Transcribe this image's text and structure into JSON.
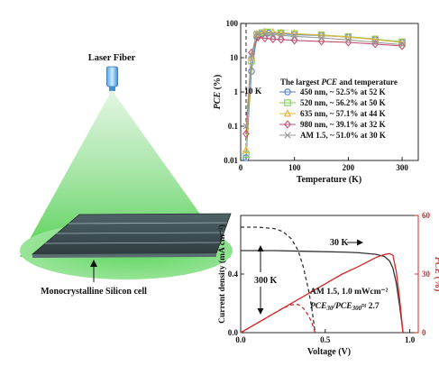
{
  "illustration": {
    "laser_label": "Laser Fiber",
    "cell_label": "Monocrystalline Silicon cell"
  },
  "chart_data": [
    {
      "type": "line",
      "xlabel": "Temperature (K)",
      "ylabel": "PCE (%)",
      "xlim": [
        0,
        330
      ],
      "ylim": [
        0.01,
        100
      ],
      "yscale": "log",
      "xticks": [
        "0",
        "100",
        "200",
        "300"
      ],
      "yticks": [
        "0.01",
        "0.1",
        "1",
        "10",
        "100"
      ],
      "grid": false,
      "legend_title": "The largest PCE and temperature",
      "legend_placement": "center-right",
      "annotation_10k": "10 K",
      "vline_x": 10,
      "series": [
        {
          "name": "450 nm, ~ 52.5% at 52 K",
          "color": "#4f7fd6",
          "marker": "circle",
          "x": [
            10,
            20,
            30,
            40,
            52,
            75,
            100,
            150,
            200,
            250,
            300
          ],
          "y": [
            0.012,
            4,
            40,
            50,
            52.5,
            50,
            47,
            44,
            40,
            34,
            28
          ]
        },
        {
          "name": "520 nm, ~ 56.2% at 50 K",
          "color": "#7fcf54",
          "marker": "square",
          "x": [
            10,
            20,
            30,
            40,
            50,
            75,
            100,
            150,
            200,
            250,
            300
          ],
          "y": [
            0.015,
            8,
            46,
            54,
            56.2,
            53,
            50,
            46,
            41,
            35,
            29
          ]
        },
        {
          "name": "635 nm, ~ 57.1% at 44 K",
          "color": "#e8b33a",
          "marker": "triangle",
          "x": [
            10,
            20,
            30,
            44,
            60,
            75,
            100,
            150,
            200,
            250,
            300
          ],
          "y": [
            0.02,
            10,
            50,
            57.1,
            55,
            53,
            50,
            45,
            40,
            34,
            28
          ]
        },
        {
          "name": "980 nm, ~ 39.1% at 32 K",
          "color": "#c05070",
          "marker": "diamond",
          "x": [
            10,
            20,
            32,
            45,
            60,
            75,
            100,
            150,
            200,
            250,
            300
          ],
          "y": [
            0.06,
            14,
            39.1,
            37,
            35,
            34,
            32,
            30,
            28,
            25,
            22
          ]
        },
        {
          "name": "AM 1.5, ~ 51.0% at 30 K",
          "color": "#9a9a9a",
          "marker": "cross",
          "x": [
            10,
            20,
            30,
            45,
            60,
            75,
            100,
            150,
            200,
            250,
            300
          ],
          "y": [
            0.1,
            12,
            51,
            49,
            47,
            45,
            42,
            38,
            33,
            28,
            24
          ]
        }
      ]
    },
    {
      "type": "line",
      "xlabel": "Voltage (V)",
      "ylabel": "Current density (mA cm⁻²)",
      "ylabel_right": "PCE (%)",
      "xlim": [
        0,
        1.05
      ],
      "ylim": [
        0,
        0.8
      ],
      "ylim_right": [
        0,
        60
      ],
      "xticks": [
        "0.0",
        "0.5",
        "1.0"
      ],
      "yticks": [
        "0.0",
        "0.4"
      ],
      "yticks_right": [
        "0",
        "30",
        "60"
      ],
      "grid": false,
      "annotations": {
        "label_30k": "30 K",
        "label_300k": "300 K",
        "condition_text": "AM 1.5, 1.0 mWcm⁻²",
        "ratio_prefix": "PCE",
        "ratio_sub1": "30",
        "ratio_mid": "/PCE",
        "ratio_sub2": "300",
        "ratio_value": "≈ 2.7"
      },
      "series": [
        {
          "name": "30 K J-V",
          "axis": "left",
          "color": "#333333",
          "dash": "solid",
          "x": [
            0.0,
            0.2,
            0.4,
            0.6,
            0.7,
            0.8,
            0.85,
            0.88,
            0.9,
            0.92,
            0.94,
            0.96
          ],
          "y": [
            0.56,
            0.56,
            0.555,
            0.55,
            0.545,
            0.535,
            0.52,
            0.49,
            0.44,
            0.34,
            0.18,
            0.0
          ]
        },
        {
          "name": "300 K J-V",
          "axis": "left",
          "color": "#333333",
          "dash": "dashed",
          "x": [
            0.0,
            0.1,
            0.2,
            0.25,
            0.3,
            0.34,
            0.37,
            0.4,
            0.42,
            0.44
          ],
          "y": [
            0.72,
            0.72,
            0.71,
            0.69,
            0.64,
            0.56,
            0.45,
            0.3,
            0.17,
            0.0
          ]
        },
        {
          "name": "30 K PCE",
          "axis": "right",
          "color": "#d42a2a",
          "dash": "solid",
          "x": [
            0.0,
            0.2,
            0.4,
            0.6,
            0.7,
            0.8,
            0.85,
            0.88,
            0.9,
            0.92,
            0.94,
            0.96
          ],
          "y": [
            0.0,
            10,
            20,
            30,
            34,
            38.5,
            40,
            40.5,
            39.6,
            31.3,
            16.9,
            0.0
          ]
        },
        {
          "name": "300 K PCE",
          "axis": "right",
          "color": "#d42a2a",
          "dash": "dashed",
          "x": [
            0.0,
            0.1,
            0.2,
            0.25,
            0.3,
            0.34,
            0.37,
            0.4,
            0.42,
            0.44
          ],
          "y": [
            0.0,
            5,
            10,
            12.5,
            14.3,
            14.4,
            12.5,
            9.0,
            5.3,
            0.0
          ]
        }
      ]
    }
  ]
}
